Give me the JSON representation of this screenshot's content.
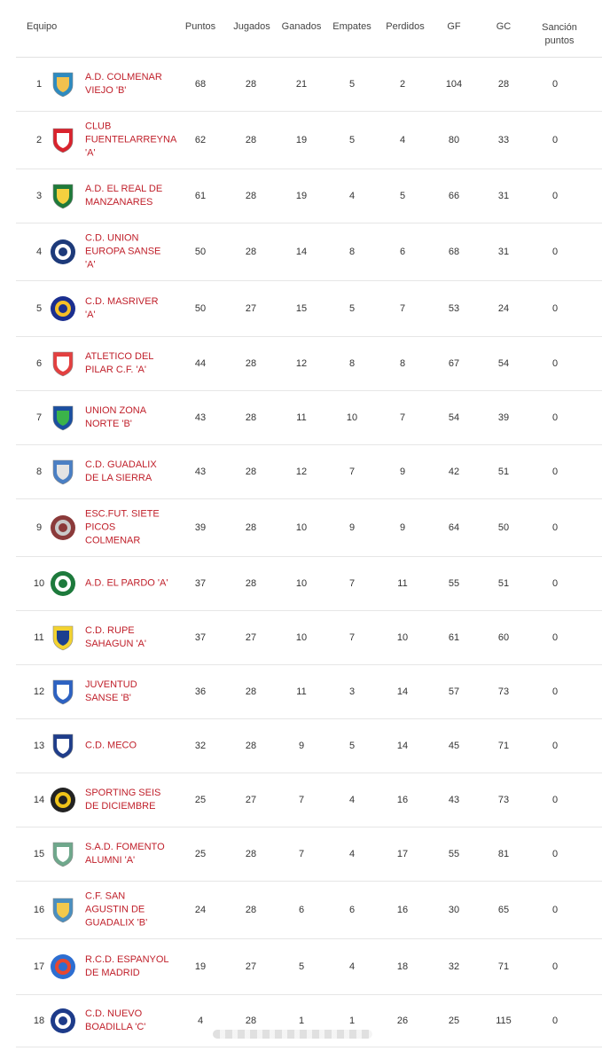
{
  "table": {
    "headers": {
      "team": "Equipo",
      "points": "Puntos",
      "played": "Jugados",
      "won": "Ganados",
      "drawn": "Empates",
      "lost": "Perdidos",
      "gf": "GF",
      "gc": "GC",
      "sanction_line1": "Sanción",
      "sanction_line2": "puntos"
    },
    "rows": [
      {
        "pos": "1",
        "name": [
          "A.D. COLMENAR",
          "VIEJO 'B'"
        ],
        "pts": "68",
        "j": "28",
        "g": "21",
        "e": "5",
        "p": "2",
        "gf": "104",
        "gc": "28",
        "s": "0",
        "crest": "shield",
        "c1": "#2e8bc0",
        "c2": "#f2c14e"
      },
      {
        "pos": "2",
        "name": [
          "CLUB",
          "FUENTELARREYNA",
          "'A'"
        ],
        "pts": "62",
        "j": "28",
        "g": "19",
        "e": "5",
        "p": "4",
        "gf": "80",
        "gc": "33",
        "s": "0",
        "crest": "shield",
        "c1": "#d9232d",
        "c2": "#ffffff"
      },
      {
        "pos": "3",
        "name": [
          "A.D. EL REAL DE",
          "MANZANARES"
        ],
        "pts": "61",
        "j": "28",
        "g": "19",
        "e": "4",
        "p": "5",
        "gf": "66",
        "gc": "31",
        "s": "0",
        "crest": "shield",
        "c1": "#1f7a3a",
        "c2": "#f4d03f"
      },
      {
        "pos": "4",
        "name": [
          "C.D. UNION",
          "EUROPA SANSE",
          "'A'"
        ],
        "pts": "50",
        "j": "28",
        "g": "14",
        "e": "8",
        "p": "6",
        "gf": "68",
        "gc": "31",
        "s": "0",
        "crest": "round",
        "c1": "#1d3a7a",
        "c2": "#ffffff"
      },
      {
        "pos": "5",
        "name": [
          "C.D. MASRIVER",
          "'A'"
        ],
        "pts": "50",
        "j": "27",
        "g": "15",
        "e": "5",
        "p": "7",
        "gf": "53",
        "gc": "24",
        "s": "0",
        "crest": "round",
        "c1": "#1b2f8f",
        "c2": "#f6c026"
      },
      {
        "pos": "6",
        "name": [
          "ATLETICO DEL",
          "PILAR C.F. 'A'"
        ],
        "pts": "44",
        "j": "28",
        "g": "12",
        "e": "8",
        "p": "8",
        "gf": "67",
        "gc": "54",
        "s": "0",
        "crest": "shield",
        "c1": "#e34040",
        "c2": "#ffffff"
      },
      {
        "pos": "7",
        "name": [
          "UNION ZONA",
          "NORTE 'B'"
        ],
        "pts": "43",
        "j": "28",
        "g": "11",
        "e": "10",
        "p": "7",
        "gf": "54",
        "gc": "39",
        "s": "0",
        "crest": "shield",
        "c1": "#1a4fa0",
        "c2": "#3bb34a"
      },
      {
        "pos": "8",
        "name": [
          "C.D. GUADALIX",
          "DE LA SIERRA"
        ],
        "pts": "43",
        "j": "28",
        "g": "12",
        "e": "7",
        "p": "9",
        "gf": "42",
        "gc": "51",
        "s": "0",
        "crest": "shield",
        "c1": "#4a7fc4",
        "c2": "#e3e3e3"
      },
      {
        "pos": "9",
        "name": [
          "ESC.FUT. SIETE",
          "PICOS",
          "COLMENAR"
        ],
        "pts": "39",
        "j": "28",
        "g": "10",
        "e": "9",
        "p": "9",
        "gf": "64",
        "gc": "50",
        "s": "0",
        "crest": "round",
        "c1": "#8b3a3a",
        "c2": "#c9c9c9"
      },
      {
        "pos": "10",
        "name": [
          "A.D. EL PARDO 'A'"
        ],
        "pts": "37",
        "j": "28",
        "g": "10",
        "e": "7",
        "p": "11",
        "gf": "55",
        "gc": "51",
        "s": "0",
        "crest": "round",
        "c1": "#1d7a3c",
        "c2": "#ffffff"
      },
      {
        "pos": "11",
        "name": [
          "C.D. RUPE",
          "SAHAGUN 'A'"
        ],
        "pts": "37",
        "j": "27",
        "g": "10",
        "e": "7",
        "p": "10",
        "gf": "61",
        "gc": "60",
        "s": "0",
        "crest": "shield",
        "c1": "#f2d230",
        "c2": "#1b3f8f"
      },
      {
        "pos": "12",
        "name": [
          "JUVENTUD",
          "SANSE 'B'"
        ],
        "pts": "36",
        "j": "28",
        "g": "11",
        "e": "3",
        "p": "14",
        "gf": "57",
        "gc": "73",
        "s": "0",
        "crest": "shield",
        "c1": "#2d62c2",
        "c2": "#ffffff"
      },
      {
        "pos": "13",
        "name": [
          "C.D. MECO"
        ],
        "pts": "32",
        "j": "28",
        "g": "9",
        "e": "5",
        "p": "14",
        "gf": "45",
        "gc": "71",
        "s": "0",
        "crest": "shield",
        "c1": "#1f3d8a",
        "c2": "#ffffff"
      },
      {
        "pos": "14",
        "name": [
          "SPORTING SEIS",
          "DE DICIEMBRE"
        ],
        "pts": "25",
        "j": "27",
        "g": "7",
        "e": "4",
        "p": "16",
        "gf": "43",
        "gc": "73",
        "s": "0",
        "crest": "round",
        "c1": "#222222",
        "c2": "#f0c419"
      },
      {
        "pos": "15",
        "name": [
          "S.A.D. FOMENTO",
          "ALUMNI 'A'"
        ],
        "pts": "25",
        "j": "28",
        "g": "7",
        "e": "4",
        "p": "17",
        "gf": "55",
        "gc": "81",
        "s": "0",
        "crest": "shield",
        "c1": "#6fa88c",
        "c2": "#ffffff"
      },
      {
        "pos": "16",
        "name": [
          "C.F. SAN",
          "AGUSTIN DE",
          "GUADALIX 'B'"
        ],
        "pts": "24",
        "j": "28",
        "g": "6",
        "e": "6",
        "p": "16",
        "gf": "30",
        "gc": "65",
        "s": "0",
        "crest": "shield",
        "c1": "#4b8fbf",
        "c2": "#f2c94c"
      },
      {
        "pos": "17",
        "name": [
          "R.C.D. ESPANYOL",
          "DE MADRID"
        ],
        "pts": "19",
        "j": "27",
        "g": "5",
        "e": "4",
        "p": "18",
        "gf": "32",
        "gc": "71",
        "s": "0",
        "crest": "round",
        "c1": "#2d6ed1",
        "c2": "#e8472f"
      },
      {
        "pos": "18",
        "name": [
          "C.D. NUEVO",
          "BOADILLA 'C'"
        ],
        "pts": "4",
        "j": "28",
        "g": "1",
        "e": "1",
        "p": "26",
        "gf": "25",
        "gc": "115",
        "s": "0",
        "crest": "round",
        "c1": "#1d3b8a",
        "c2": "#ffffff"
      }
    ]
  }
}
